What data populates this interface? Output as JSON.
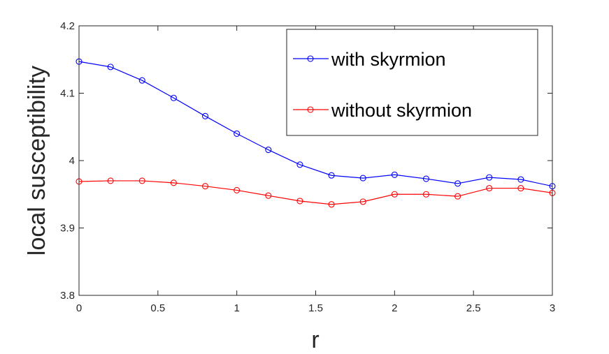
{
  "chart_data": {
    "type": "line",
    "title": "",
    "xlabel": "r",
    "ylabel": "local susceptibility",
    "xlim": [
      0,
      3
    ],
    "ylim": [
      3.8,
      4.2
    ],
    "x_ticks": [
      "0",
      "0.5",
      "1",
      "1.5",
      "2",
      "2.5",
      "3"
    ],
    "y_ticks": [
      "3.8",
      "3.9",
      "4",
      "4.1",
      "4.2"
    ],
    "grid": false,
    "legend_position": "top-right",
    "x": [
      0,
      0.2,
      0.4,
      0.6,
      0.8,
      1.0,
      1.2,
      1.4,
      1.6,
      1.8,
      2.0,
      2.2,
      2.4,
      2.6,
      2.8,
      3.0
    ],
    "series": [
      {
        "name": "with skyrmion",
        "color": "#0000ff",
        "marker": "circle",
        "values": [
          4.147,
          4.139,
          4.119,
          4.093,
          4.066,
          4.04,
          4.016,
          3.994,
          3.978,
          3.974,
          3.979,
          3.973,
          3.966,
          3.975,
          3.972,
          3.962
        ]
      },
      {
        "name": "without skyrmion",
        "color": "#ff0000",
        "marker": "circle",
        "values": [
          3.969,
          3.97,
          3.97,
          3.967,
          3.962,
          3.956,
          3.948,
          3.94,
          3.935,
          3.939,
          3.95,
          3.95,
          3.947,
          3.959,
          3.959,
          3.952
        ]
      }
    ]
  }
}
